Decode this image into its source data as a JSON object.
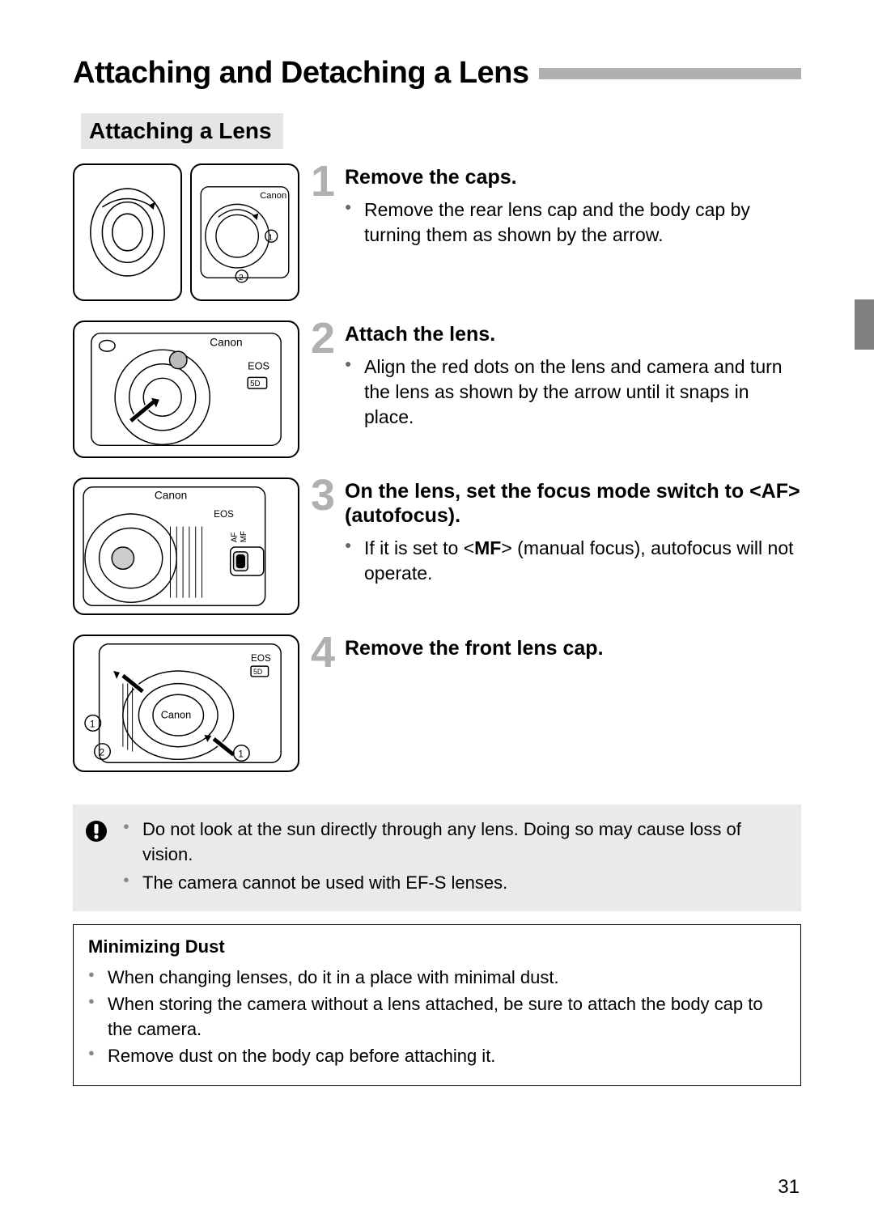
{
  "page_title": "Attaching and Detaching a Lens",
  "section_heading": "Attaching a Lens",
  "side_tab_color": "#808080",
  "title_bar_color": "#b0b0b0",
  "step_number_color": "#b0b0b0",
  "steps": [
    {
      "num": "1",
      "title": "Remove the caps.",
      "bullets": [
        "Remove the rear lens cap and the body cap by turning them as shown by the arrow."
      ]
    },
    {
      "num": "2",
      "title": "Attach the lens.",
      "bullets": [
        "Align the red dots on the lens and camera and turn the lens as shown by the arrow until it snaps in place."
      ]
    },
    {
      "num": "3",
      "title": "On the lens, set the focus mode switch to <AF> (autofocus).",
      "bullets_html": [
        "If it is set to <<b>MF</b>> (manual focus), autofocus will not operate."
      ]
    },
    {
      "num": "4",
      "title": "Remove the front lens cap.",
      "bullets": []
    }
  ],
  "caution": {
    "items": [
      "Do not look at the sun directly through any lens. Doing so may cause loss of vision.",
      "The camera cannot be used with EF-S lenses."
    ]
  },
  "dust": {
    "heading": "Minimizing Dust",
    "items": [
      "When changing lenses, do it in a place with minimal dust.",
      "When storing the camera without a lens attached, be sure to attach the body cap to the camera.",
      "Remove dust on the body cap before attaching it."
    ]
  },
  "page_number": "31",
  "illustration_labels": {
    "brand": "Canon",
    "eos": "EOS",
    "model": "5D",
    "af": "AF",
    "mf": "MF",
    "marker1": "1",
    "marker2": "2"
  }
}
